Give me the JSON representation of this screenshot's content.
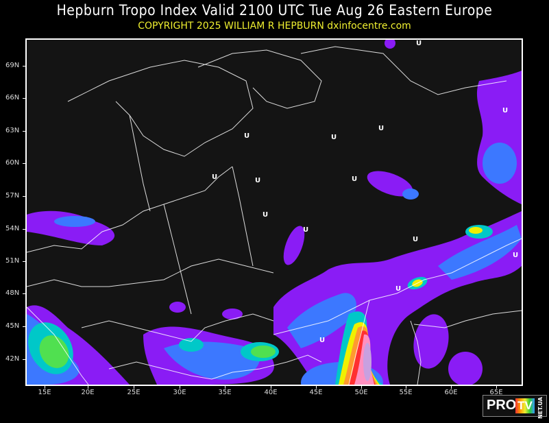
{
  "header": {
    "title": "Hepburn Tropo Index Valid 2100 UTC Tue Aug 26 Eastern Europe",
    "subtitle": "COPYRIGHT 2025   WILLIAM R HEPBURN   dxinfocentre.com"
  },
  "map": {
    "region": "Eastern Europe",
    "lat_labels": [
      "69N",
      "66N",
      "63N",
      "60N",
      "57N",
      "54N",
      "51N",
      "48N",
      "45N",
      "42N"
    ],
    "lon_labels": [
      "15E",
      "20E",
      "25E",
      "30E",
      "35E",
      "40E",
      "45E",
      "50E",
      "55E",
      "60E",
      "65E"
    ],
    "pressure_labels": [
      "U",
      "U",
      "U",
      "U",
      "U",
      "U",
      "U",
      "U",
      "U",
      "U",
      "U",
      "U",
      "U",
      "U"
    ],
    "colors": {
      "background": "#141414",
      "level1": "#8a1cf5",
      "level2": "#3c78ff",
      "level3": "#00c8c8",
      "level4": "#50e050",
      "level5": "#f0f000",
      "level6": "#ff9a30",
      "level7": "#ff3030",
      "level8": "#ff90c0",
      "level9": "#c8a0e0",
      "borders": "#ffffff"
    }
  },
  "logo": {
    "pro": "PRO",
    "tv": "TV",
    "net": "NET.UA"
  }
}
